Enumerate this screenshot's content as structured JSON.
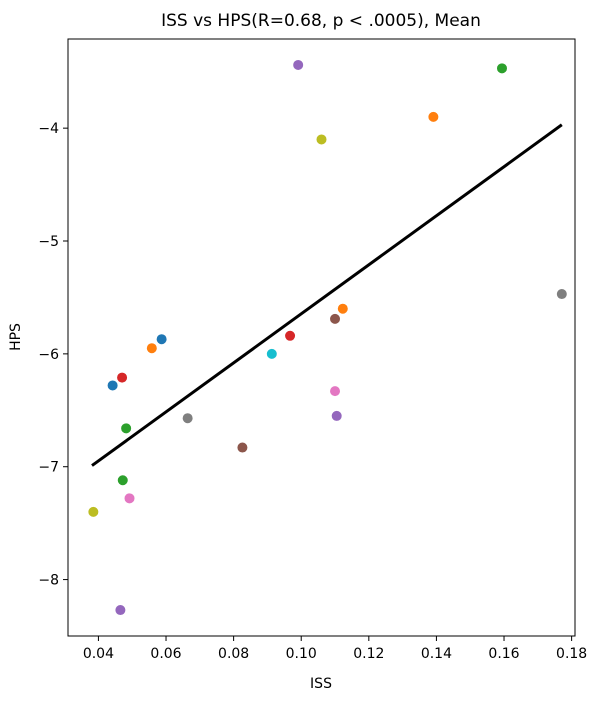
{
  "chart_data": {
    "type": "scatter",
    "title": "ISS vs HPS(R=0.68, p < .0005), Mean",
    "xlabel": "ISS",
    "ylabel": "HPS",
    "xlim": [
      0.031,
      0.181
    ],
    "ylim": [
      -8.5,
      -3.21
    ],
    "xticks": [
      0.04,
      0.06,
      0.08,
      0.1,
      0.12,
      0.14,
      0.16,
      0.18
    ],
    "xtick_labels": [
      "0.04",
      "0.06",
      "0.08",
      "0.10",
      "0.12",
      "0.14",
      "0.16",
      "0.18"
    ],
    "yticks": [
      -8,
      -7,
      -6,
      -5,
      -4
    ],
    "ytick_labels": [
      "−8",
      "−7",
      "−6",
      "−5",
      "−4"
    ],
    "grid": false,
    "points": [
      {
        "x": 0.0385,
        "y": -7.4,
        "color": "#bcbd22"
      },
      {
        "x": 0.0442,
        "y": -6.28,
        "color": "#1f77b4"
      },
      {
        "x": 0.0465,
        "y": -8.27,
        "color": "#9467bd"
      },
      {
        "x": 0.047,
        "y": -6.21,
        "color": "#d62728"
      },
      {
        "x": 0.0472,
        "y": -7.12,
        "color": "#2ca02c"
      },
      {
        "x": 0.0482,
        "y": -6.66,
        "color": "#2ca02c"
      },
      {
        "x": 0.0492,
        "y": -7.28,
        "color": "#e377c2"
      },
      {
        "x": 0.0558,
        "y": -5.95,
        "color": "#ff7f0e"
      },
      {
        "x": 0.0587,
        "y": -5.87,
        "color": "#1f77b4"
      },
      {
        "x": 0.0664,
        "y": -6.57,
        "color": "#7f7f7f"
      },
      {
        "x": 0.0826,
        "y": -6.83,
        "color": "#8c564b"
      },
      {
        "x": 0.0913,
        "y": -6.0,
        "color": "#17becf"
      },
      {
        "x": 0.0967,
        "y": -5.84,
        "color": "#d62728"
      },
      {
        "x": 0.0991,
        "y": -3.44,
        "color": "#9467bd"
      },
      {
        "x": 0.106,
        "y": -4.1,
        "color": "#bcbd22"
      },
      {
        "x": 0.11,
        "y": -5.69,
        "color": "#8c564b"
      },
      {
        "x": 0.11,
        "y": -6.33,
        "color": "#e377c2"
      },
      {
        "x": 0.1105,
        "y": -6.55,
        "color": "#9467bd"
      },
      {
        "x": 0.1123,
        "y": -5.6,
        "color": "#ff7f0e"
      },
      {
        "x": 0.1391,
        "y": -3.9,
        "color": "#ff7f0e"
      },
      {
        "x": 0.1594,
        "y": -3.47,
        "color": "#2ca02c"
      },
      {
        "x": 0.1771,
        "y": -5.47,
        "color": "#7f7f7f"
      }
    ],
    "fit_line": {
      "x": [
        0.0381,
        0.1771
      ],
      "y": [
        -6.99,
        -3.97
      ],
      "color": "#000000"
    }
  }
}
